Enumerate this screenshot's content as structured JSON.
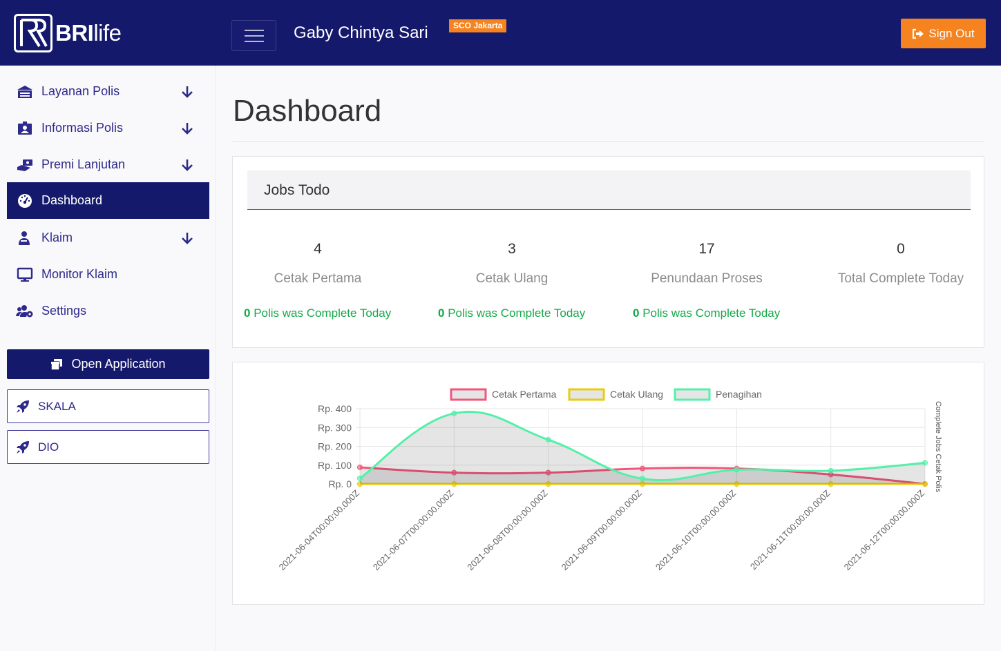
{
  "header": {
    "brand_bold": "BRI",
    "brand_light": "life",
    "user_name": "Gaby Chintya Sari",
    "branch": "SCO Jakarta",
    "sign_out": "Sign Out"
  },
  "sidebar": {
    "items": [
      {
        "label": "Layanan Polis",
        "icon": "building-icon",
        "has_arrow": true
      },
      {
        "label": "Informasi Polis",
        "icon": "id-badge-icon",
        "has_arrow": true
      },
      {
        "label": "Premi Lanjutan",
        "icon": "hand-money-icon",
        "has_arrow": true
      },
      {
        "label": "Dashboard",
        "icon": "gauge-icon",
        "has_arrow": false,
        "active": true
      },
      {
        "label": "Klaim",
        "icon": "user-shield-icon",
        "has_arrow": true
      },
      {
        "label": "Monitor Klaim",
        "icon": "monitor-icon",
        "has_arrow": false
      },
      {
        "label": "Settings",
        "icon": "users-cog-icon",
        "has_arrow": false
      }
    ],
    "open_application": "Open Application",
    "external_apps": [
      "SKALA",
      "DIO"
    ]
  },
  "main": {
    "title": "Dashboard",
    "jobs": {
      "title": "Jobs Todo",
      "stats": [
        {
          "count": "4",
          "label": "Cetak Pertama",
          "note_count": "0",
          "note_text": "Polis was Complete Today"
        },
        {
          "count": "3",
          "label": "Cetak Ulang",
          "note_count": "0",
          "note_text": "Polis was Complete Today"
        },
        {
          "count": "17",
          "label": "Penundaan Proses",
          "note_count": "0",
          "note_text": "Polis was Complete Today"
        },
        {
          "count": "0",
          "label": "Total Complete Today"
        }
      ]
    }
  },
  "colors": {
    "navy": "#14196b",
    "orange": "#f5831f",
    "purple_text": "#2e2a8c",
    "green": "#17a84a",
    "series_pink": "#f0577b",
    "series_yellow": "#e8cc0e",
    "series_green": "#54f0aa"
  },
  "chart_data": {
    "type": "line",
    "x": [
      "2021-06-04T00:00:00.000Z",
      "2021-06-07T00:00:00.000Z",
      "2021-06-08T00:00:00.000Z",
      "2021-06-09T00:00:00.000Z",
      "2021-06-10T00:00:00.000Z",
      "2021-06-11T00:00:00.000Z",
      "2021-06-12T00:00:00.000Z"
    ],
    "y_ticks": [
      "Rp. 0",
      "Rp. 100",
      "Rp. 200",
      "Rp. 300",
      "Rp. 400"
    ],
    "ylim": [
      0,
      400
    ],
    "right_axis_label": "Complete Jobs Cetak Polis",
    "legend_position": "top",
    "grid": true,
    "series": [
      {
        "name": "Cetak Pertama",
        "values": [
          88,
          60,
          60,
          82,
          82,
          50,
          0
        ],
        "color": "#f0577b"
      },
      {
        "name": "Cetak Ulang",
        "values": [
          0,
          0,
          0,
          0,
          0,
          0,
          0
        ],
        "color": "#e8cc0e"
      },
      {
        "name": "Penagihan",
        "values": [
          30,
          375,
          235,
          28,
          75,
          70,
          112
        ],
        "color": "#54f0aa"
      }
    ]
  }
}
